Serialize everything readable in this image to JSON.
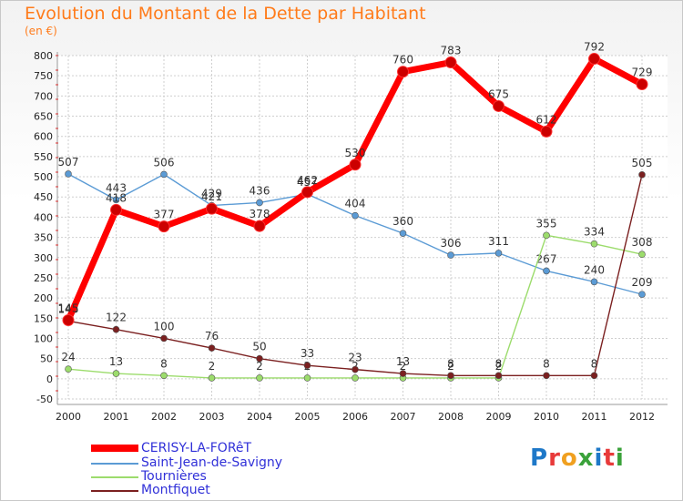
{
  "header": {
    "title": "Evolution du Montant de la Dette par Habitant",
    "subtitle": "(en €)"
  },
  "brand": {
    "letters": [
      "P",
      "r",
      "o",
      "x",
      "i",
      "t",
      "i"
    ],
    "colors": [
      "#1e78c8",
      "#e83a3a",
      "#f0a020",
      "#3aa23a",
      "#1e78c8",
      "#e83a3a",
      "#3aa23a"
    ]
  },
  "chart_data": {
    "type": "line",
    "title": "Evolution du Montant de la Dette par Habitant",
    "ylabel": "(en €)",
    "xlabel": "",
    "x": [
      "2000",
      "2001",
      "2002",
      "2003",
      "2004",
      "2005",
      "2006",
      "2007",
      "2008",
      "2009",
      "2010",
      "2011",
      "2012"
    ],
    "ylim": [
      -50,
      800
    ],
    "yticks": [
      -50,
      0,
      50,
      100,
      150,
      200,
      250,
      300,
      350,
      400,
      450,
      500,
      550,
      600,
      650,
      700,
      750,
      800
    ],
    "grid": true,
    "legend_position": "bottom-left",
    "series": [
      {
        "name": "Saint-Jean-de-Savigny",
        "color": "#5b9bd5",
        "values": [
          507,
          443,
          506,
          429,
          436,
          457,
          404,
          360,
          306,
          311,
          267,
          240,
          209
        ]
      },
      {
        "name": "Tournières",
        "color": "#9cdc6c",
        "values": [
          24,
          13,
          8,
          2,
          2,
          2,
          2,
          2,
          2,
          2,
          355,
          334,
          308
        ]
      },
      {
        "name": "Montfiquet",
        "color": "#7b2020",
        "values": [
          143,
          122,
          100,
          76,
          50,
          33,
          23,
          13,
          8,
          8,
          8,
          8,
          505
        ]
      },
      {
        "name": "CERISY-LA-FORêT",
        "color": "#ff0000",
        "values": [
          145,
          418,
          377,
          421,
          378,
          462,
          530,
          760,
          783,
          675,
          612,
          792,
          729
        ]
      }
    ]
  }
}
